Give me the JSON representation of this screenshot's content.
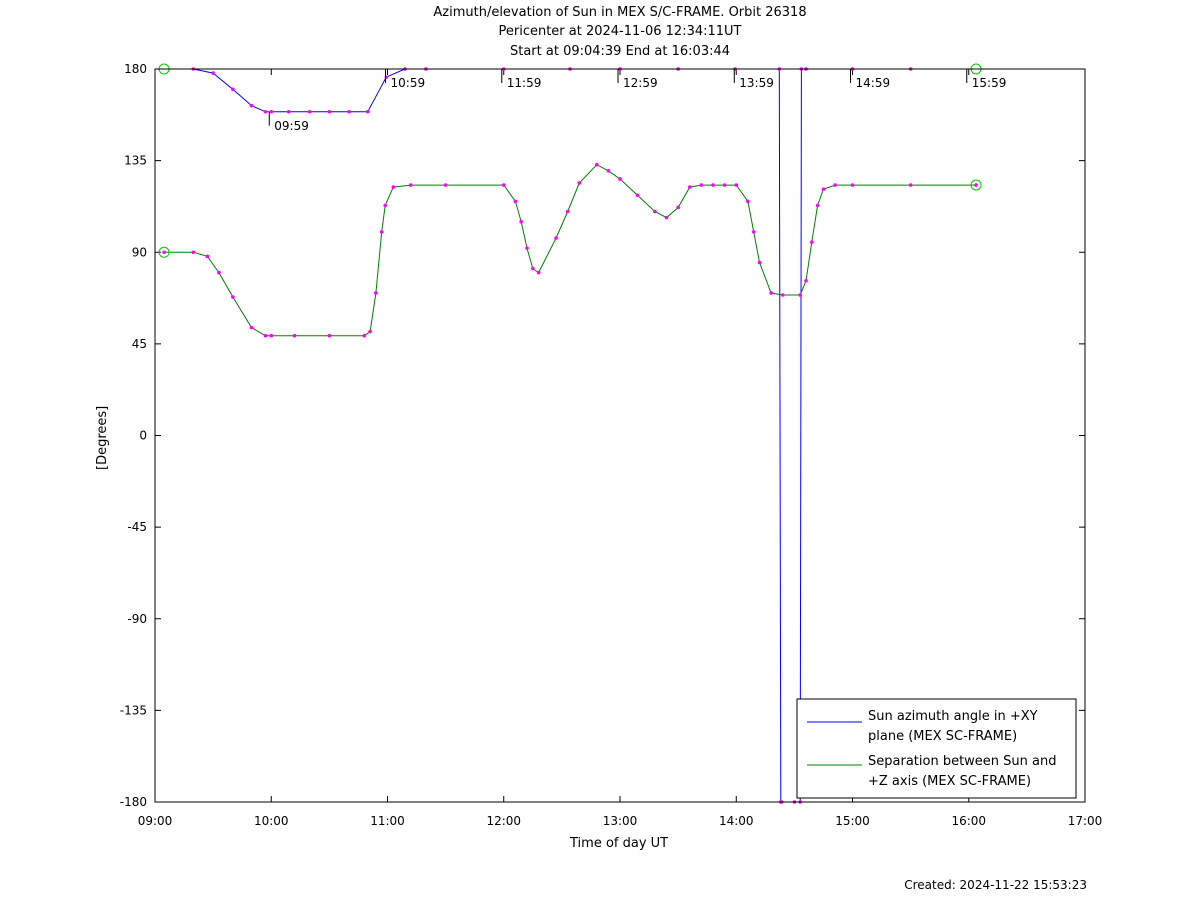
{
  "chart_data": {
    "type": "line",
    "title": "Azimuth/elevation of Sun in MEX S/C-FRAME.  Orbit 26318",
    "subtitle_1": "Pericenter at 2024-11-06 12:34:11UT",
    "subtitle_2": "Start at 09:04:39 End at 16:03:44",
    "xlabel": "Time of day UT",
    "ylabel": "[Degrees]",
    "xlim": [
      9.0,
      17.0
    ],
    "ylim": [
      -180,
      180
    ],
    "x_ticks": [
      9,
      10,
      11,
      12,
      13,
      14,
      15,
      16,
      17
    ],
    "x_tick_labels": [
      "09:00",
      "10:00",
      "11:00",
      "12:00",
      "13:00",
      "14:00",
      "15:00",
      "16:00",
      "17:00"
    ],
    "y_ticks": [
      180,
      135,
      90,
      45,
      0,
      -45,
      -90,
      -135,
      -180
    ],
    "y_tick_labels": [
      "180",
      "135",
      "90",
      "45",
      "0",
      "-45",
      "-90",
      "-135",
      "-180"
    ],
    "grid": false,
    "legend_position": "bottom-right",
    "series": [
      {
        "name": "Sun azimuth angle in +XY plane (MEX SC-FRAME)",
        "legend_lines": [
          "Sun azimuth angle in +XY",
          "plane (MEX SC-FRAME)"
        ],
        "color": "#0000ff",
        "x": [
          9.078,
          9.33,
          9.5,
          9.67,
          9.83,
          9.95,
          10.0,
          10.15,
          10.33,
          10.5,
          10.67,
          10.83,
          10.99,
          11.15,
          11.33,
          12.0,
          12.57,
          13.0,
          13.5,
          13.99,
          14.37,
          14.383,
          14.39,
          14.5,
          14.55,
          14.56,
          14.6,
          15.0,
          15.5,
          16.063
        ],
        "y": [
          180,
          180,
          178,
          170,
          162,
          159,
          159,
          159,
          159,
          159,
          159,
          159,
          176,
          180,
          180,
          180,
          180,
          180,
          180,
          180,
          180,
          -180,
          -180,
          -180,
          -180,
          180,
          180,
          180,
          180,
          180
        ]
      },
      {
        "name": "Separation between Sun and +Z axis (MEX SC-FRAME)",
        "legend_lines": [
          "Separation between Sun and",
          "+Z axis (MEX SC-FRAME)"
        ],
        "color": "#008000",
        "x": [
          9.078,
          9.33,
          9.45,
          9.55,
          9.67,
          9.83,
          9.95,
          10.0,
          10.2,
          10.5,
          10.8,
          10.85,
          10.9,
          10.95,
          10.98,
          11.05,
          11.2,
          11.5,
          12.0,
          12.1,
          12.15,
          12.2,
          12.25,
          12.3,
          12.45,
          12.55,
          12.65,
          12.8,
          12.9,
          13.0,
          13.15,
          13.3,
          13.4,
          13.5,
          13.6,
          13.7,
          13.8,
          13.9,
          14.0,
          14.1,
          14.15,
          14.2,
          14.3,
          14.4,
          14.55,
          14.6,
          14.65,
          14.7,
          14.75,
          14.85,
          15.0,
          15.5,
          16.063
        ],
        "y": [
          90,
          90,
          88,
          80,
          68,
          53,
          49,
          49,
          49,
          49,
          49,
          51,
          70,
          100,
          113,
          122,
          123,
          123,
          123,
          115,
          105,
          92,
          82,
          80,
          97,
          110,
          124,
          133,
          130,
          126,
          118,
          110,
          107,
          112,
          122,
          123,
          123,
          123,
          123,
          115,
          100,
          85,
          70,
          69,
          69,
          76,
          95,
          113,
          121,
          123,
          123,
          123,
          123
        ]
      }
    ],
    "time_markers": {
      "labels": [
        "09:59",
        "10:59",
        "11:59",
        "12:59",
        "13:59",
        "14:59",
        "15:59"
      ],
      "x": [
        9.983,
        10.983,
        11.983,
        12.983,
        13.983,
        14.983,
        15.983
      ],
      "y": [
        159,
        180,
        180,
        180,
        180,
        180,
        180
      ]
    },
    "footer": "Created: 2024-11-22 15:53:23"
  }
}
